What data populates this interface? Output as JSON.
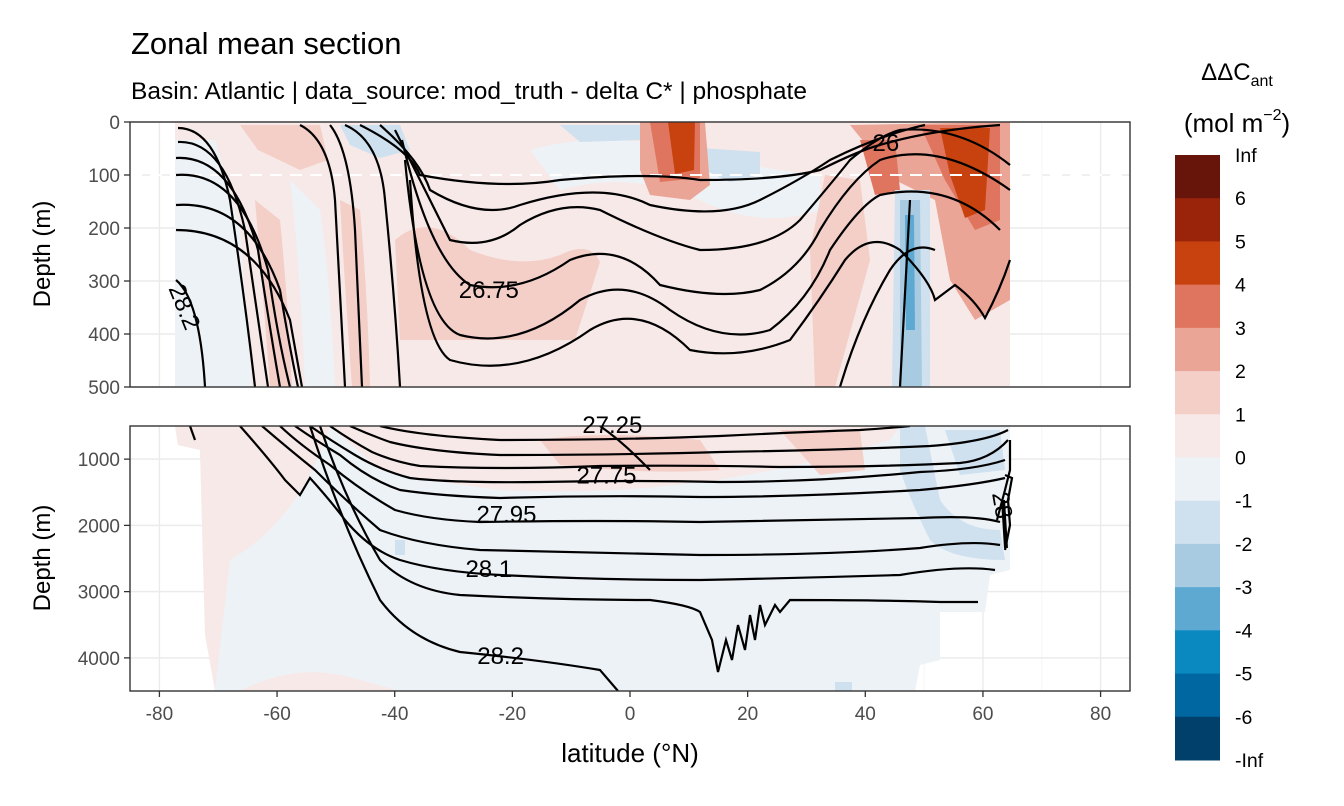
{
  "chart_data": {
    "type": "heatmap",
    "title": "Zonal mean section",
    "subtitle": "Basin: Atlantic | data_source: mod_truth - delta C* | phosphate",
    "xlabel": "latitude (°N)",
    "ylabel": "Depth (m)",
    "xlim": [
      -85,
      85
    ],
    "x_ticks": [
      -80,
      -60,
      -40,
      -20,
      0,
      20,
      40,
      60,
      80
    ],
    "panels": [
      {
        "name": "upper",
        "ylim": [
          500,
          0
        ],
        "y_ticks": [
          0,
          100,
          200,
          300,
          400,
          500
        ],
        "reference_depth_line": 100
      },
      {
        "name": "lower",
        "ylim": [
          4500,
          500
        ],
        "y_ticks": [
          1000,
          2000,
          3000,
          4000
        ]
      }
    ],
    "legend": {
      "title_main": "ΔΔC",
      "title_sub": "ant",
      "title_unit": "(mol m",
      "title_exp": "−2",
      "title_close": ")",
      "placement": "right",
      "labels": [
        "Inf",
        "6",
        "5",
        "4",
        "3",
        "2",
        "1",
        "0",
        "-1",
        "-2",
        "-3",
        "-4",
        "-5",
        "-6",
        "-Inf"
      ],
      "colors": [
        "#67150a",
        "#9a2409",
        "#c7420e",
        "#e0755f",
        "#eba596",
        "#f3cfc8",
        "#f7e9e8",
        "#edf2f7",
        "#cfe0ef",
        "#a9cbe2",
        "#5ea9d1",
        "#0a88c0",
        "#0067a0",
        "#00406a"
      ]
    },
    "contour_labels": [
      {
        "text": "26",
        "x": 43.5,
        "y": 43
      },
      {
        "text": "26.75",
        "x": -24,
        "y": 320
      },
      {
        "text": "27.25",
        "x": -3,
        "y": 510
      },
      {
        "text": "27.75",
        "x": -4,
        "y": 1270
      },
      {
        "text": "27.95",
        "x": -21,
        "y": 1860
      },
      {
        "text": "28.1",
        "x": -24,
        "y": 2680
      },
      {
        "text": "28.2",
        "x": -22,
        "y": 3995
      },
      {
        "text": "28.2",
        "x": -76,
        "y": 350
      },
      {
        "text": "28",
        "x": 63,
        "y": 1700
      }
    ]
  }
}
